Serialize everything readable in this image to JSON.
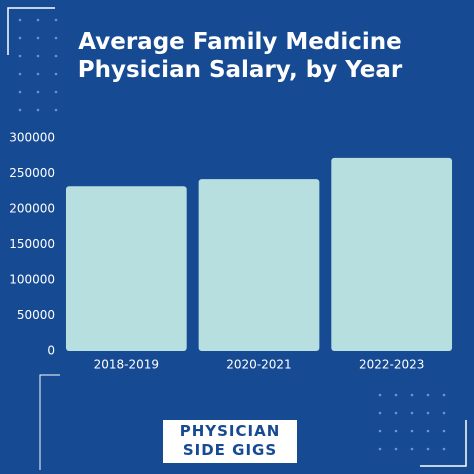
{
  "chart_data": {
    "type": "bar",
    "title": "Average Family Medicine Physician Salary, by Year",
    "categories": [
      "2018-2019",
      "2020-2021",
      "2022-2023"
    ],
    "values": [
      232000,
      242000,
      272000
    ],
    "color": "#b7dfdf",
    "ylim": [
      0,
      300000
    ],
    "yticks": [
      0,
      50000,
      100000,
      150000,
      200000,
      250000,
      300000
    ],
    "grid": false
  },
  "brand": {
    "line1": "PHYSICIAN",
    "line2": "SIDE GIGS"
  }
}
